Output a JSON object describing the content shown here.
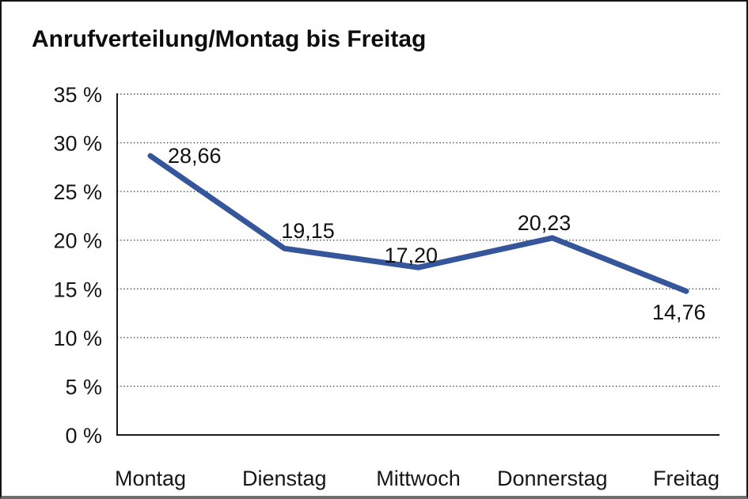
{
  "window": {
    "background": "#ffffff",
    "frame_border_color": "#141414",
    "frame_bottom_color": "#6f6f6f"
  },
  "chart_data": {
    "type": "line",
    "title": "Anrufverteilung/Montag bis Freitag",
    "categories": [
      "Montag",
      "Dienstag",
      "Mittwoch",
      "Donnerstag",
      "Freitag"
    ],
    "series": [
      {
        "name": "Anrufverteilung",
        "values": [
          28.66,
          19.15,
          17.2,
          20.23,
          14.76
        ]
      }
    ],
    "point_labels": [
      "28,66",
      "19,15",
      "17,20",
      "20,23",
      "14,76"
    ],
    "y_ticks": [
      {
        "value": 35,
        "label": "35 %"
      },
      {
        "value": 30,
        "label": "30 %"
      },
      {
        "value": 25,
        "label": "25 %"
      },
      {
        "value": 20,
        "label": "20 %"
      },
      {
        "value": 15,
        "label": "15 %"
      },
      {
        "value": 10,
        "label": "10 %"
      },
      {
        "value": 5,
        "label": "5 %"
      },
      {
        "value": 0,
        "label": "0 %"
      }
    ],
    "ylim": [
      0,
      35
    ],
    "y_tick_step": 5,
    "xlabel": "",
    "ylabel": "",
    "legend": "none",
    "grid": "horizontal-dotted",
    "line_color": "#35569B",
    "axis_color": "#1a1a1a",
    "gridline_color": "#444444",
    "text_color": "#161616"
  }
}
